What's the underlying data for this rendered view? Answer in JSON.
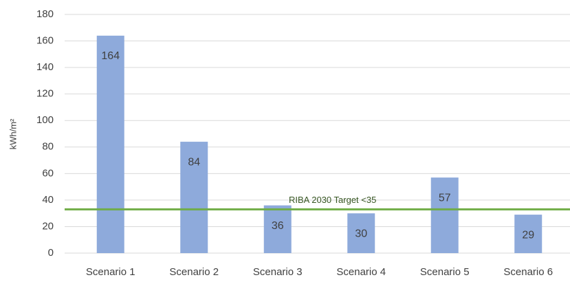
{
  "chart_data": {
    "type": "bar",
    "y_label": "kWh/m²",
    "categories": [
      "Scenario 1",
      "Scenario 2",
      "Scenario 3",
      "Scenario 4",
      "Scenario 5",
      "Scenario 6"
    ],
    "values": [
      164,
      84,
      36,
      30,
      57,
      29
    ],
    "color": "#8eaadb",
    "ylim": [
      0,
      180
    ],
    "yticks": [
      0,
      20,
      40,
      60,
      80,
      100,
      120,
      140,
      160,
      180
    ],
    "grid": true,
    "reference_line": {
      "value": 33,
      "label": "RIBA 2030 Target <35",
      "color": "#70ad47"
    }
  }
}
